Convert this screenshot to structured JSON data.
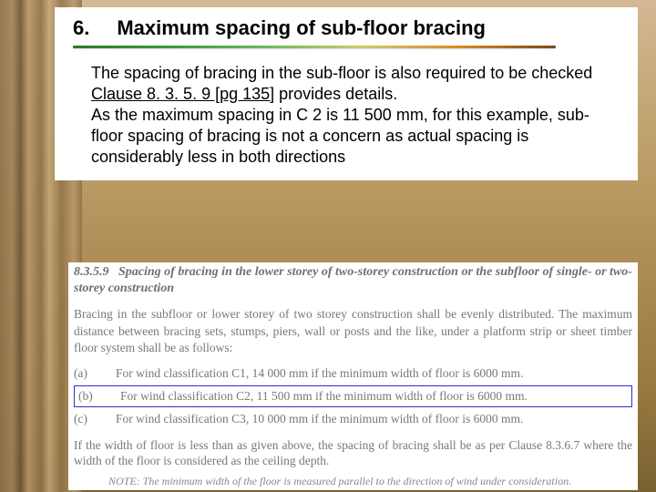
{
  "header": {
    "section_number": "6.",
    "section_title": "Maximum spacing of sub-floor bracing"
  },
  "body": {
    "text_part1": "The spacing of bracing in the sub-floor is also required to be checked ",
    "clause_ref": "Clause 8. 3. 5. 9 [pg 135]",
    "text_part2": " provides details.",
    "text_part3": "As the maximum spacing in C 2 is 11 500 mm, for this example, sub-floor spacing of bracing is not a concern as actual spacing is considerably less in both directions"
  },
  "excerpt": {
    "clause_num": "8.3.5.9",
    "clause_title": "Spacing of bracing in the lower storey of two-storey construction or the subfloor of single- or two-storey construction",
    "para": "Bracing in the subfloor or lower storey of two storey construction shall be evenly distributed. The maximum distance between bracing sets, stumps, piers, wall or posts and the like, under a platform strip or sheet timber floor system shall be as follows:",
    "items": [
      {
        "marker": "(a)",
        "text": "For wind classification C1, 14 000 mm if the minimum width of floor is 6000 mm."
      },
      {
        "marker": "(b)",
        "text": "For wind classification C2, 11 500 mm if the minimum width of floor is 6000 mm."
      },
      {
        "marker": "(c)",
        "text": "For wind classification C3, 10 000 mm if the minimum width of floor is 6000 mm."
      }
    ],
    "condition": "If the width of floor is less than as given above, the spacing of bracing shall be as per Clause 8.3.6.7 where the width of the floor is considered as the ceiling depth.",
    "note": "NOTE: The minimum width of the floor is measured parallel to the direction of wind under consideration."
  }
}
